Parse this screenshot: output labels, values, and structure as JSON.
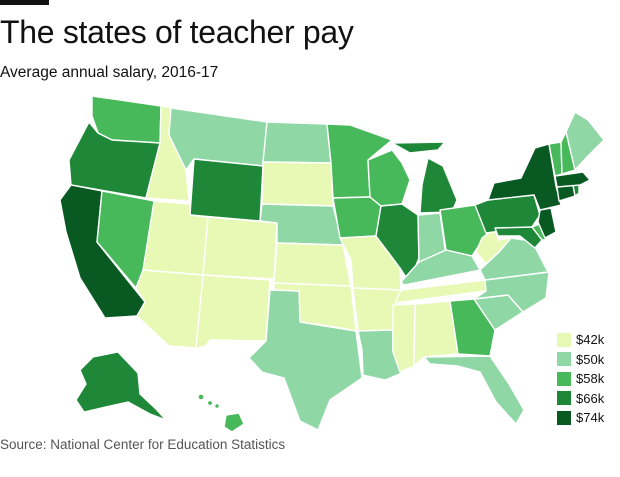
{
  "title": "The states of teacher pay",
  "subtitle": "Average annual salary, 2016-17",
  "source": "Source: National Center for Education Statistics",
  "colors": {
    "c1": "#e8f9b5",
    "c2": "#8fd8a6",
    "c3": "#48b95b",
    "c4": "#1e8838",
    "c5": "#085a22"
  },
  "legend": [
    {
      "label": "$42k",
      "key": "c1"
    },
    {
      "label": "$50k",
      "key": "c2"
    },
    {
      "label": "$58k",
      "key": "c3"
    },
    {
      "label": "$66k",
      "key": "c4"
    },
    {
      "label": "$74k",
      "key": "c5"
    }
  ],
  "states": {
    "WA": "c3",
    "OR": "c4",
    "CA": "c5",
    "ID": "c1",
    "NV": "c3",
    "MT": "c2",
    "WY": "c4",
    "UT": "c1",
    "AZ": "c1",
    "CO": "c1",
    "NM": "c1",
    "ND": "c2",
    "SD": "c1",
    "NE": "c2",
    "KS": "c1",
    "OK": "c1",
    "TX": "c2",
    "MN": "c3",
    "IA": "c3",
    "MO": "c1",
    "AR": "c1",
    "LA": "c2",
    "WI": "c3",
    "IL": "c4",
    "MI": "c4",
    "IN": "c2",
    "OH": "c3",
    "KY": "c2",
    "TN": "c1",
    "MS": "c1",
    "AL": "c1",
    "GA": "c3",
    "FL": "c2",
    "SC": "c2",
    "NC": "c2",
    "VA": "c2",
    "WV": "c1",
    "PA": "c4",
    "NY": "c5",
    "VT": "c3",
    "NH": "c3",
    "ME": "c2",
    "MA": "c5",
    "CT": "c5",
    "RI": "c4",
    "NJ": "c5",
    "DE": "c3",
    "MD": "c4",
    "AK": "c4",
    "HI": "c3"
  }
}
